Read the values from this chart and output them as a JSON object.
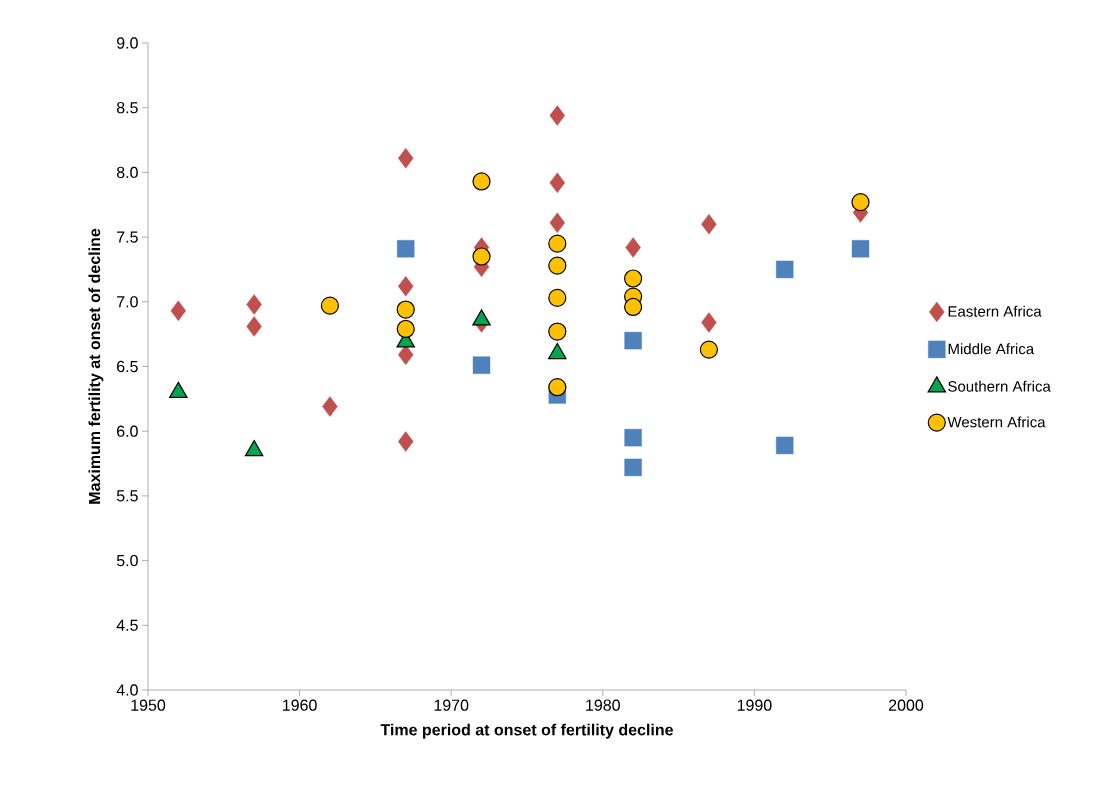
{
  "chart_data": {
    "type": "scatter",
    "xlabel": "Time period at onset of fertility decline",
    "ylabel": "Maximum fertility at onset of decline",
    "xlim": [
      1950,
      2000
    ],
    "xticks": [
      1950,
      1960,
      1970,
      1980,
      1990,
      2000
    ],
    "ylim": [
      4,
      9
    ],
    "yticks": [
      {
        "value": 4,
        "label": "4.0"
      },
      4.5,
      {
        "value": 5,
        "label": "5.0"
      },
      5.5,
      {
        "value": 6,
        "label": "6.0"
      },
      6.5,
      {
        "value": 7,
        "label": "7.0"
      },
      7.5,
      {
        "value": 8,
        "label": "8.0"
      },
      8.5,
      {
        "value": 9,
        "label": "9.0"
      }
    ],
    "grid": false,
    "legend": "right",
    "series": [
      {
        "name": "Eastern Africa",
        "color": "#c0504d",
        "marker": "diamond",
        "x": [
          1952,
          1957,
          1957,
          1962,
          1967,
          1967,
          1967,
          1967,
          1972,
          1972,
          1972,
          1977,
          1977,
          1977,
          1982,
          1987,
          1987,
          1997
        ],
        "values": [
          6.93,
          6.98,
          6.81,
          6.19,
          8.11,
          7.12,
          6.59,
          5.92,
          7.42,
          7.27,
          6.84,
          8.44,
          7.92,
          7.61,
          7.42,
          7.6,
          6.84,
          7.69
        ]
      },
      {
        "name": "Middle Africa",
        "color": "#4f81bd",
        "marker": "square",
        "x": [
          1967,
          1972,
          1977,
          1982,
          1982,
          1982,
          1992,
          1992,
          1997
        ],
        "values": [
          7.41,
          6.51,
          6.28,
          6.7,
          5.95,
          5.72,
          7.25,
          5.89,
          7.41
        ]
      },
      {
        "name": "Southern Africa",
        "color": "#00a650",
        "marker": "triangle",
        "x": [
          1952,
          1957,
          1967,
          1972,
          1977
        ],
        "values": [
          6.3,
          5.85,
          6.69,
          6.86,
          6.6
        ]
      },
      {
        "name": "Western Africa",
        "color": "#ffc000",
        "marker": "circle",
        "x": [
          1962,
          1967,
          1967,
          1972,
          1972,
          1977,
          1977,
          1977,
          1977,
          1977,
          1982,
          1982,
          1982,
          1987,
          1997
        ],
        "values": [
          6.97,
          6.94,
          6.79,
          7.93,
          7.35,
          7.45,
          7.28,
          7.03,
          6.77,
          6.34,
          7.18,
          7.04,
          6.96,
          6.63,
          7.77
        ]
      }
    ]
  }
}
